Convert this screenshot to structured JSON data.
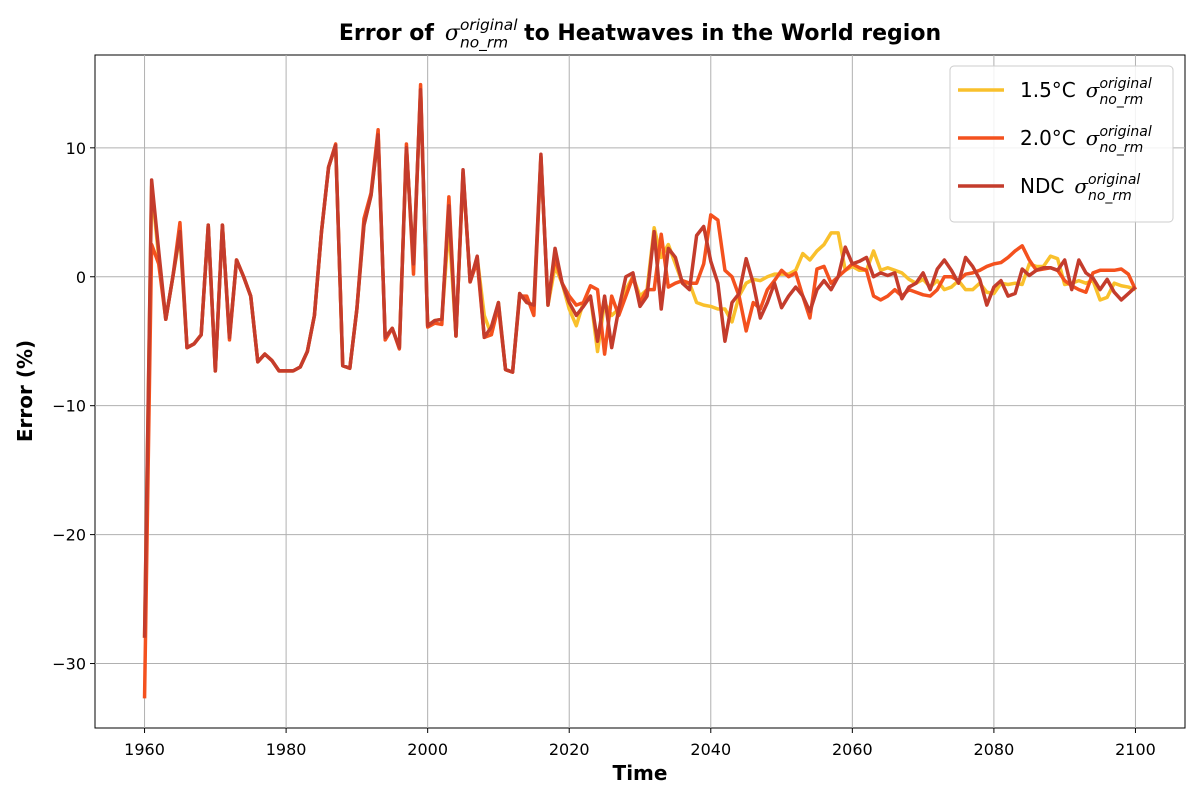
{
  "chart_data": {
    "type": "line",
    "title": {
      "before": "Error of",
      "symbol": "σ",
      "sup": "original",
      "sub": "no_rm",
      "after": "to Heatwaves in the World region"
    },
    "x_label": "Time",
    "y_label": "Error (%)",
    "xlim": [
      1953,
      2107
    ],
    "ylim": [
      -35,
      17.2
    ],
    "xticks": [
      1960,
      1980,
      2000,
      2020,
      2040,
      2060,
      2080,
      2100
    ],
    "yticks": [
      {
        "value": -30,
        "label": "−30"
      },
      {
        "value": -20,
        "label": "−20"
      },
      {
        "value": -10,
        "label": "−10"
      },
      0,
      10
    ],
    "grid": true,
    "legend": "upper right",
    "x": [
      1960,
      1961,
      1962,
      1963,
      1964,
      1965,
      1966,
      1967,
      1968,
      1969,
      1970,
      1971,
      1972,
      1973,
      1974,
      1975,
      1976,
      1977,
      1978,
      1979,
      1980,
      1981,
      1982,
      1983,
      1984,
      1985,
      1986,
      1987,
      1988,
      1989,
      1990,
      1991,
      1992,
      1993,
      1994,
      1995,
      1996,
      1997,
      1998,
      1999,
      2000,
      2001,
      2002,
      2003,
      2004,
      2005,
      2006,
      2007,
      2008,
      2009,
      2010,
      2011,
      2012,
      2013,
      2014,
      2015,
      2016,
      2017,
      2018,
      2019,
      2020,
      2021,
      2022,
      2023,
      2024,
      2025,
      2026,
      2027,
      2028,
      2029,
      2030,
      2031,
      2032,
      2033,
      2034,
      2035,
      2036,
      2037,
      2038,
      2039,
      2040,
      2041,
      2042,
      2043,
      2044,
      2045,
      2046,
      2047,
      2048,
      2049,
      2050,
      2051,
      2052,
      2053,
      2054,
      2055,
      2056,
      2057,
      2058,
      2059,
      2060,
      2061,
      2062,
      2063,
      2064,
      2065,
      2066,
      2067,
      2068,
      2069,
      2070,
      2071,
      2072,
      2073,
      2074,
      2075,
      2076,
      2077,
      2078,
      2079,
      2080,
      2081,
      2082,
      2083,
      2084,
      2085,
      2086,
      2087,
      2088,
      2089,
      2090,
      2091,
      2092,
      2093,
      2094,
      2095,
      2096,
      2097,
      2098,
      2099,
      2100
    ],
    "series": [
      {
        "name": "1.5°C",
        "name_symbol": "σ",
        "name_sup": "original",
        "name_sub": "no_rm",
        "color": "#f9c02c",
        "values": [
          -28,
          7,
          1.5,
          -3.3,
          0,
          3.2,
          -5.5,
          -5.2,
          -4.5,
          4,
          -7.3,
          4,
          -4.7,
          1.3,
          0,
          -1.5,
          -6.6,
          -6,
          -6.5,
          -7.3,
          -7.3,
          -7.3,
          -7,
          -5.8,
          -3,
          3.5,
          8.5,
          10.2,
          -6.9,
          -7.1,
          -2.5,
          4,
          6.3,
          11,
          -4.7,
          -4,
          -5.5,
          10,
          1,
          14.5,
          -3.8,
          -3.4,
          -3.3,
          4,
          -4.6,
          8,
          -0.4,
          1.5,
          -3,
          -4.5,
          -2,
          -7.2,
          -7.4,
          -1.3,
          -2,
          -2.2,
          9.3,
          -2.2,
          0.8,
          -0.5,
          -2.5,
          -3.8,
          -2,
          -1.5,
          -5.8,
          -2,
          -3,
          -2.5,
          -1,
          0,
          -1.5,
          -1,
          3.8,
          1.5,
          2.5,
          1,
          -0.5,
          -0.5,
          -2,
          -2.2,
          -2.3,
          -2.5,
          -2.5,
          -3.5,
          -1.5,
          -0.5,
          -0.2,
          -0.3,
          0,
          0.2,
          0.2,
          0.2,
          0.5,
          1.8,
          1.3,
          2,
          2.5,
          3.4,
          3.4,
          0.5,
          0.8,
          0.5,
          0.5,
          2,
          0.5,
          0.7,
          0.5,
          0.3,
          -0.2,
          -0.5,
          -0.2,
          -0.8,
          -0.3,
          -1,
          -0.8,
          -0.3,
          -1,
          -1,
          -0.5,
          -1.2,
          -1.3,
          -0.5,
          -0.6,
          -0.5,
          -0.6,
          1,
          0.8,
          0.8,
          1.6,
          1.4,
          -0.6,
          -0.5,
          -0.3,
          -0.5,
          -0.3,
          -1.8,
          -1.6,
          -0.5,
          -0.7,
          -0.8,
          -1
        ]
      },
      {
        "name": "2.0°C",
        "name_symbol": "σ",
        "name_sup": "original",
        "name_sub": "no_rm",
        "color": "#f4511e",
        "values": [
          -32.7,
          2.5,
          1,
          -3.3,
          0,
          4.2,
          -5.5,
          -5.2,
          -4.5,
          4,
          -7.3,
          4,
          -4.9,
          1.3,
          0,
          -1.5,
          -6.6,
          -6,
          -6.5,
          -7.3,
          -7.3,
          -7.3,
          -7,
          -5.8,
          -3,
          3.5,
          8.5,
          10.3,
          -6.9,
          -7.1,
          -2.5,
          4.5,
          6.5,
          11.4,
          -4.9,
          -4,
          -5.6,
          10.3,
          0.2,
          14.9,
          -3.9,
          -3.6,
          -3.7,
          6.2,
          -4.6,
          8.1,
          -0.4,
          1.2,
          -4.7,
          -4.5,
          -2.3,
          -7.2,
          -7.4,
          -1.5,
          -1.5,
          -3,
          9.3,
          -2,
          1.5,
          -0.5,
          -1.5,
          -2.2,
          -2,
          -0.7,
          -1,
          -6,
          -1.5,
          -3,
          -1.5,
          0,
          -2,
          -1,
          -1,
          3.3,
          -0.8,
          -0.5,
          -0.3,
          -0.5,
          -0.5,
          1,
          4.8,
          4.4,
          0.5,
          0,
          -1.5,
          -4.2,
          -2,
          -2.5,
          -1,
          -0.3,
          0.5,
          0,
          0.3,
          -1.5,
          -3.2,
          0.6,
          0.8,
          -0.5,
          0,
          0.5,
          1,
          0.7,
          0.5,
          -1.5,
          -1.8,
          -1.5,
          -1,
          -1.5,
          -1,
          -1.2,
          -1.4,
          -1.5,
          -1,
          0,
          0,
          -0.3,
          0.2,
          0.3,
          0.5,
          0.8,
          1,
          1.1,
          1.5,
          2,
          2.4,
          1.3,
          0.5,
          0.6,
          0.7,
          0.5,
          -0.3,
          -0.7,
          -1,
          -1.2,
          0.3,
          0.5,
          0.5,
          0.5,
          0.6,
          0.2,
          -1
        ]
      },
      {
        "name": "NDC",
        "name_symbol": "σ",
        "name_sup": "original",
        "name_sub": "no_rm",
        "color": "#c43c2c",
        "values": [
          -28,
          7.5,
          2,
          -3.3,
          0,
          3.5,
          -5.5,
          -5.2,
          -4.5,
          4,
          -7.3,
          4,
          -4.7,
          1.3,
          0,
          -1.5,
          -6.6,
          -6,
          -6.5,
          -7.3,
          -7.3,
          -7.3,
          -7,
          -5.8,
          -3,
          3.5,
          8.5,
          10.2,
          -6.9,
          -7.1,
          -2.5,
          4,
          6.3,
          11,
          -4.7,
          -4,
          -5.5,
          10,
          1,
          14.5,
          -3.8,
          -3.4,
          -3.3,
          5.5,
          -4.6,
          8.3,
          -0.4,
          1.6,
          -4.7,
          -3.9,
          -2,
          -7.2,
          -7.4,
          -1.3,
          -2,
          -2.2,
          9.5,
          -2.2,
          2.2,
          -0.5,
          -2,
          -3,
          -2.3,
          -1.5,
          -5,
          -1.5,
          -5.5,
          -2.5,
          0,
          0.3,
          -2.3,
          -1.5,
          3.5,
          -2.5,
          2.2,
          1.5,
          -0.5,
          -1,
          3.2,
          3.9,
          1.2,
          -0.5,
          -5,
          -2,
          -1.3,
          1.4,
          -0.5,
          -3.2,
          -2,
          -0.5,
          -2.4,
          -1.5,
          -0.8,
          -1.5,
          -2.7,
          -1,
          -0.3,
          -1,
          0,
          2.3,
          1,
          1.2,
          1.5,
          0,
          0.3,
          0.1,
          0.3,
          -1.7,
          -0.8,
          -0.5,
          0.3,
          -1,
          0.6,
          1.3,
          0.5,
          -0.5,
          1.5,
          0.8,
          -0.2,
          -2.2,
          -0.8,
          -0.3,
          -1.5,
          -1.3,
          0.6,
          0.1,
          0.5,
          0.7,
          0.7,
          0.5,
          1.3,
          -1,
          1.3,
          0.3,
          -0.1,
          -1,
          -0.2,
          -1.2,
          -1.8,
          -1.3,
          -0.8
        ]
      }
    ]
  }
}
